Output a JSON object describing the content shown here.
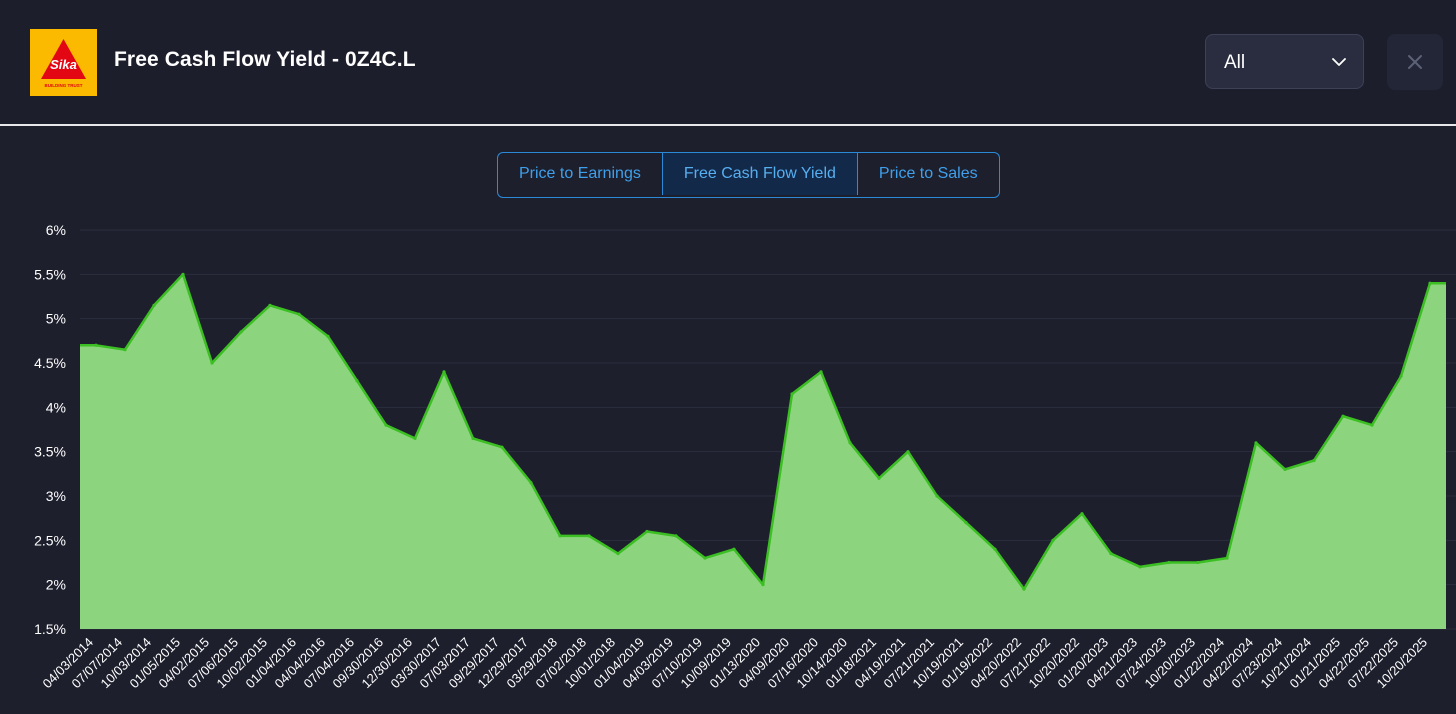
{
  "header": {
    "title": "Free Cash Flow Yield - 0Z4C.L",
    "logo_text": "Sika",
    "logo_tagline": "BUILDING TRUST",
    "range_selected": "All"
  },
  "tabs": [
    {
      "label": "Price to Earnings",
      "active": false
    },
    {
      "label": "Free Cash Flow Yield",
      "active": true
    },
    {
      "label": "Price to Sales",
      "active": false
    }
  ],
  "colors": {
    "fill": "#8dd47f",
    "line": "#3bbf22",
    "grid": "#2b2e3e",
    "accent": "#2b8ad8",
    "logo_bg": "#fbb900"
  },
  "chart_data": {
    "type": "area",
    "title": "Free Cash Flow Yield - 0Z4C.L",
    "xlabel": "",
    "ylabel": "",
    "ylim": [
      1.5,
      6
    ],
    "grid": true,
    "ytick_labels": [
      "6%",
      "5.5%",
      "5%",
      "4.5%",
      "4%",
      "3.5%",
      "3%",
      "2.5%",
      "2%",
      "1.5%"
    ],
    "ytick_values": [
      6,
      5.5,
      5,
      4.5,
      4,
      3.5,
      3,
      2.5,
      2,
      1.5
    ],
    "categories": [
      "04/03/2014",
      "07/07/2014",
      "10/03/2014",
      "01/05/2015",
      "04/02/2015",
      "07/06/2015",
      "10/02/2015",
      "01/04/2016",
      "04/04/2016",
      "07/04/2016",
      "09/30/2016",
      "12/30/2016",
      "03/30/2017",
      "07/03/2017",
      "09/29/2017",
      "12/29/2017",
      "03/29/2018",
      "07/02/2018",
      "10/01/2018",
      "01/04/2019",
      "04/03/2019",
      "07/10/2019",
      "10/09/2019",
      "01/13/2020",
      "04/09/2020",
      "07/16/2020",
      "10/14/2020",
      "01/18/2021",
      "04/19/2021",
      "07/21/2021",
      "10/19/2021",
      "01/19/2022",
      "04/20/2022",
      "07/21/2022",
      "10/20/2022",
      "01/20/2023",
      "04/21/2023",
      "07/24/2023",
      "10/20/2023",
      "01/22/2024",
      "04/22/2024",
      "07/23/2024",
      "10/21/2024",
      "01/21/2025",
      "04/22/2025",
      "07/22/2025",
      "10/20/2025"
    ],
    "series": [
      {
        "name": "Free Cash Flow Yield (%)",
        "values": [
          4.7,
          4.65,
          5.15,
          5.5,
          4.5,
          4.85,
          5.15,
          5.05,
          4.8,
          4.3,
          3.8,
          3.65,
          4.4,
          3.65,
          3.55,
          3.15,
          2.55,
          2.55,
          2.35,
          2.6,
          2.55,
          2.3,
          2.4,
          2.0,
          4.15,
          4.4,
          3.6,
          3.2,
          3.5,
          3.0,
          2.7,
          2.4,
          1.95,
          2.5,
          2.8,
          2.35,
          2.2,
          2.25,
          2.25,
          2.3,
          3.6,
          3.3,
          3.4,
          3.9,
          3.8,
          4.35,
          5.4
        ]
      }
    ]
  }
}
